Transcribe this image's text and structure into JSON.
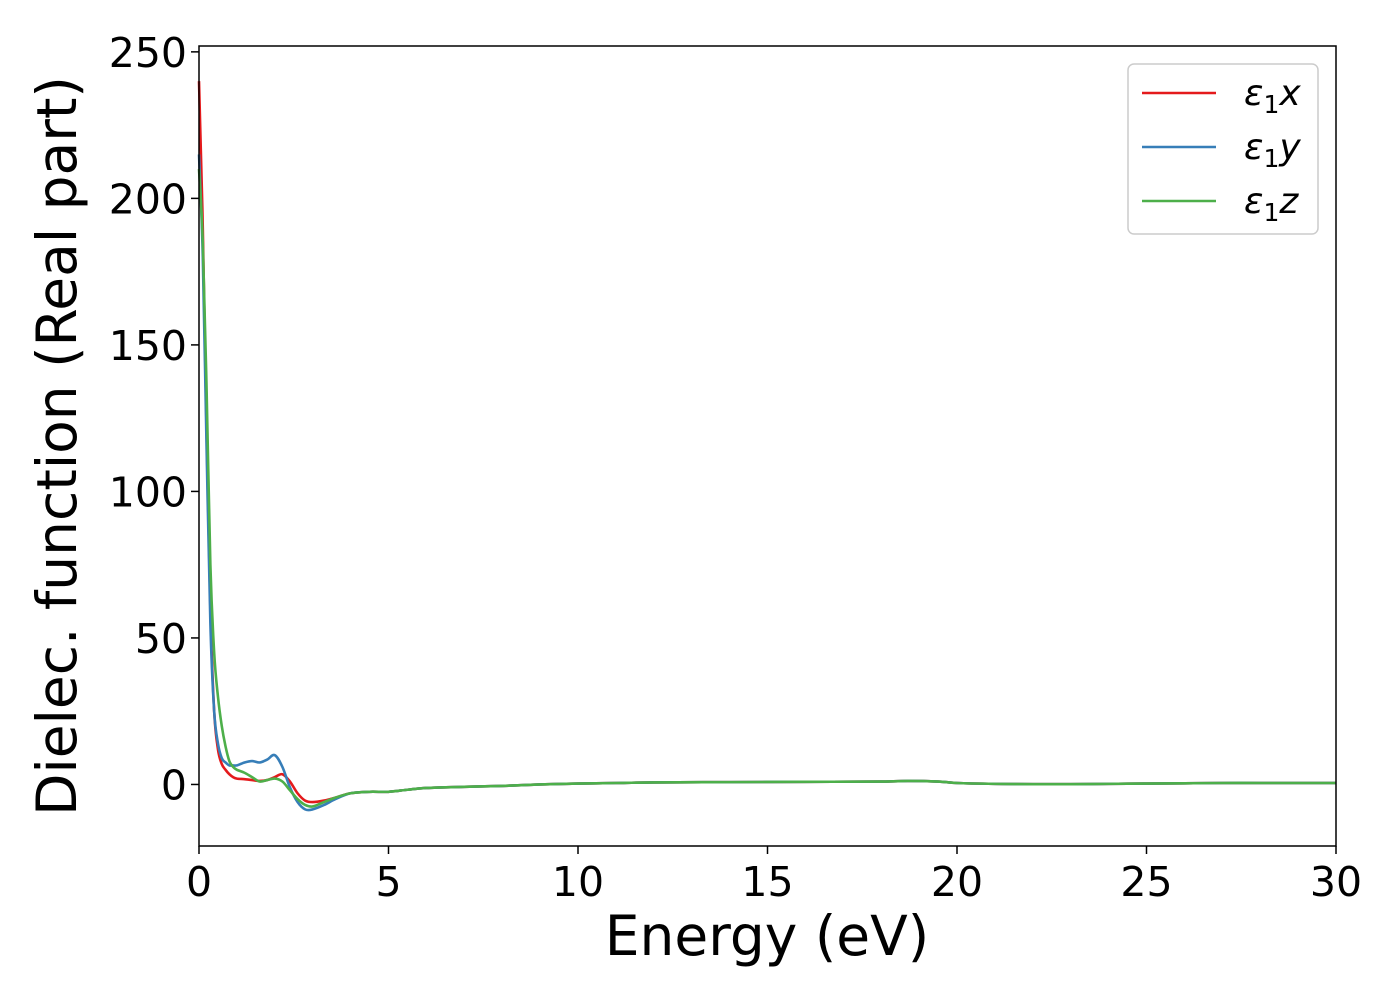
{
  "chart_data": {
    "type": "line",
    "xlabel": "Energy (eV)",
    "ylabel": "Dielec. function (Real part)",
    "xlim": [
      0,
      30
    ],
    "ylim": [
      -21,
      252
    ],
    "xticks": [
      0,
      5,
      10,
      15,
      20,
      25,
      30
    ],
    "yticks": [
      0,
      50,
      100,
      150,
      200,
      250
    ],
    "grid": false,
    "legend_position": "top-right",
    "series": [
      {
        "name": "ε1x",
        "label_base": "ε",
        "label_sub": "1",
        "label_tail": "x",
        "color": "#e41a1c",
        "x": [
          0.0,
          0.1,
          0.2,
          0.3,
          0.4,
          0.5,
          0.6,
          0.7,
          0.8,
          0.9,
          1.0,
          1.2,
          1.4,
          1.6,
          1.8,
          2.0,
          2.2,
          2.4,
          2.6,
          2.8,
          3.0,
          3.3,
          3.6,
          4.0,
          4.5,
          5.0,
          5.5,
          6.0,
          7.0,
          8.0,
          9.0,
          10.0,
          11.0,
          12.0,
          14.0,
          16.0,
          18.0,
          18.7,
          19.5,
          20.0,
          21.0,
          22.0,
          23.0,
          24.0,
          25.0,
          26.0,
          27.0,
          28.0,
          29.0,
          30.0
        ],
        "values": [
          240,
          190,
          120,
          60,
          25,
          12,
          7,
          5,
          3.5,
          2.5,
          2,
          1.8,
          1.5,
          1.2,
          1.5,
          2.5,
          3.5,
          1,
          -3,
          -5.5,
          -6,
          -5.5,
          -4.5,
          -3,
          -2.5,
          -2.5,
          -1.8,
          -1.2,
          -0.8,
          -0.5,
          0,
          0.3,
          0.5,
          0.7,
          0.8,
          0.9,
          1.0,
          1.2,
          1.0,
          0.5,
          0.2,
          0.1,
          0.1,
          0.2,
          0.3,
          0.4,
          0.5,
          0.5,
          0.5,
          0.5
        ]
      },
      {
        "name": "ε1y",
        "label_base": "ε",
        "label_sub": "1",
        "label_tail": "y",
        "color": "#377eb8",
        "x": [
          0.0,
          0.1,
          0.2,
          0.3,
          0.4,
          0.5,
          0.6,
          0.7,
          0.8,
          0.9,
          1.0,
          1.2,
          1.4,
          1.6,
          1.8,
          2.0,
          2.2,
          2.4,
          2.6,
          2.8,
          3.0,
          3.3,
          3.6,
          4.0,
          4.5,
          5.0,
          5.5,
          6.0,
          7.0,
          8.0,
          9.0,
          10.0,
          11.0,
          12.0,
          14.0,
          16.0,
          18.0,
          18.7,
          19.5,
          20.0,
          21.0,
          22.0,
          23.0,
          24.0,
          25.0,
          26.0,
          27.0,
          28.0,
          29.0,
          30.0
        ],
        "values": [
          215,
          180,
          115,
          55,
          25,
          14,
          9,
          7.5,
          6.5,
          6.5,
          6.5,
          7.5,
          8,
          7.5,
          8.5,
          10,
          6,
          -1,
          -6,
          -8.5,
          -8.5,
          -7,
          -5,
          -3,
          -2.5,
          -2.5,
          -1.8,
          -1.2,
          -0.8,
          -0.5,
          0,
          0.3,
          0.5,
          0.7,
          0.8,
          0.9,
          1.0,
          1.2,
          1.0,
          0.5,
          0.2,
          0.1,
          0.1,
          0.2,
          0.3,
          0.4,
          0.5,
          0.5,
          0.5,
          0.5
        ]
      },
      {
        "name": "ε1z",
        "label_base": "ε",
        "label_sub": "1",
        "label_tail": "z",
        "color": "#4daf4a",
        "x": [
          0.0,
          0.1,
          0.2,
          0.3,
          0.4,
          0.5,
          0.6,
          0.7,
          0.8,
          0.9,
          1.0,
          1.2,
          1.4,
          1.6,
          1.8,
          2.0,
          2.2,
          2.4,
          2.6,
          2.8,
          3.0,
          3.3,
          3.6,
          4.0,
          4.5,
          5.0,
          5.5,
          6.0,
          7.0,
          8.0,
          9.0,
          10.0,
          11.0,
          12.0,
          14.0,
          16.0,
          18.0,
          18.7,
          19.5,
          20.0,
          21.0,
          22.0,
          23.0,
          24.0,
          25.0,
          26.0,
          27.0,
          28.0,
          29.0,
          30.0
        ],
        "values": [
          210,
          185,
          135,
          75,
          45,
          30,
          20,
          13,
          8,
          6,
          5,
          4,
          2.5,
          1,
          1.5,
          2,
          1,
          -2,
          -5,
          -7,
          -7.5,
          -6,
          -4.5,
          -3,
          -2.5,
          -2.5,
          -1.8,
          -1.2,
          -0.8,
          -0.5,
          0,
          0.3,
          0.5,
          0.7,
          0.8,
          0.9,
          1.0,
          1.2,
          1.0,
          0.5,
          0.2,
          0.1,
          0.1,
          0.2,
          0.3,
          0.4,
          0.5,
          0.5,
          0.5,
          0.5
        ]
      }
    ]
  }
}
